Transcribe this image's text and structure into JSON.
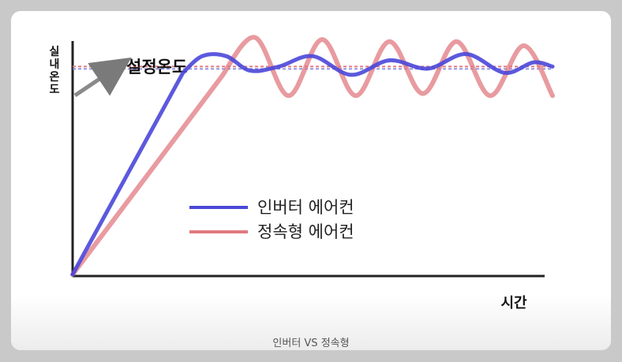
{
  "chart_data": {
    "type": "line",
    "xlabel": "시간",
    "ylabel": "실내온도",
    "annotation": "설정온도",
    "setpoint": 1.0,
    "ylim": [
      0,
      1.1
    ],
    "xlim": [
      0,
      10
    ],
    "series": [
      {
        "name": "인버터 에어컨",
        "color": "#4a47d9",
        "x": [
          0,
          2.3,
          2.7,
          3.2,
          3.7,
          4.3,
          5.0,
          5.8,
          6.6,
          7.4,
          8.2,
          9.0,
          9.6,
          10
        ],
        "y": [
          0,
          0.97,
          1.05,
          1.05,
          0.98,
          1.0,
          1.05,
          0.96,
          1.03,
          0.99,
          1.06,
          0.97,
          1.02,
          1.0
        ]
      },
      {
        "name": "정속형 에어컨",
        "color": "#e07a80",
        "x": [
          0,
          3.1,
          3.8,
          4.5,
          5.2,
          5.9,
          6.6,
          7.3,
          8.0,
          8.7,
          9.4,
          10
        ],
        "y": [
          0,
          0.95,
          1.14,
          0.86,
          1.13,
          0.86,
          1.12,
          0.87,
          1.12,
          0.86,
          1.1,
          0.86
        ]
      }
    ],
    "grid": false,
    "legend": "center"
  },
  "caption": "인버터 VS 정속형"
}
